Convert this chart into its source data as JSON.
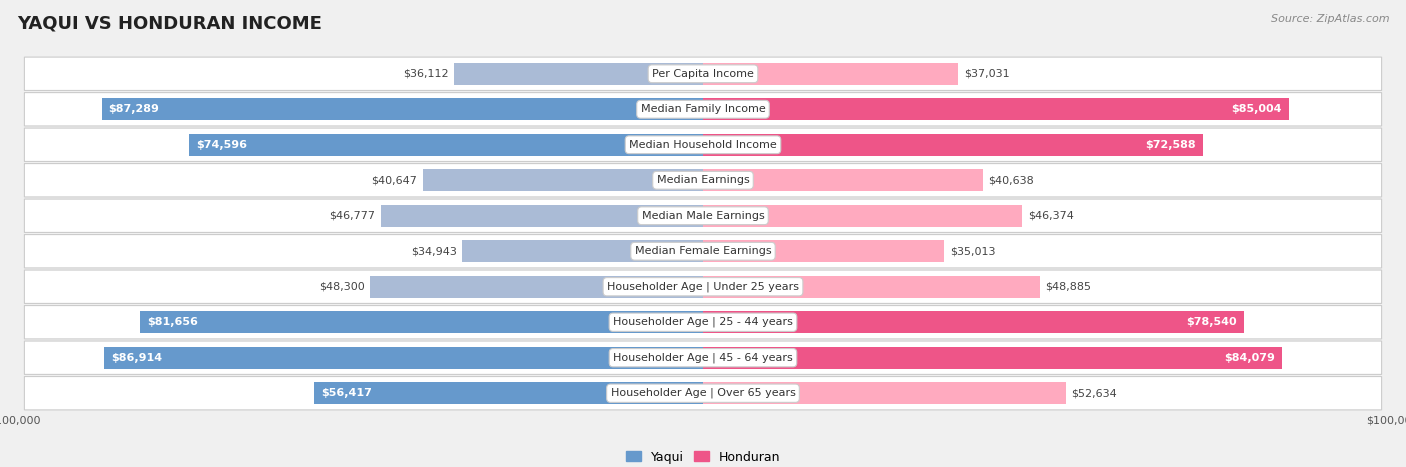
{
  "title": "YAQUI VS HONDURAN INCOME",
  "source": "Source: ZipAtlas.com",
  "categories": [
    "Per Capita Income",
    "Median Family Income",
    "Median Household Income",
    "Median Earnings",
    "Median Male Earnings",
    "Median Female Earnings",
    "Householder Age | Under 25 years",
    "Householder Age | 25 - 44 years",
    "Householder Age | 45 - 64 years",
    "Householder Age | Over 65 years"
  ],
  "yaqui_values": [
    36112,
    87289,
    74596,
    40647,
    46777,
    34943,
    48300,
    81656,
    86914,
    56417
  ],
  "honduran_values": [
    37031,
    85004,
    72588,
    40638,
    46374,
    35013,
    48885,
    78540,
    84079,
    52634
  ],
  "yaqui_labels": [
    "$36,112",
    "$87,289",
    "$74,596",
    "$40,647",
    "$46,777",
    "$34,943",
    "$48,300",
    "$81,656",
    "$86,914",
    "$56,417"
  ],
  "honduran_labels": [
    "$37,031",
    "$85,004",
    "$72,588",
    "$40,638",
    "$46,374",
    "$35,013",
    "$48,885",
    "$78,540",
    "$84,079",
    "$52,634"
  ],
  "max_value": 100000,
  "yaqui_color_large": "#6699CC",
  "yaqui_color_small": "#AABBD6",
  "honduran_color_large": "#EE5588",
  "honduran_color_small": "#FFAABF",
  "large_threshold": 55000,
  "inside_label_threshold": 55000,
  "background_color": "#f0f0f0",
  "row_bg": "#ffffff",
  "title_fontsize": 13,
  "label_fontsize": 8,
  "source_fontsize": 8
}
